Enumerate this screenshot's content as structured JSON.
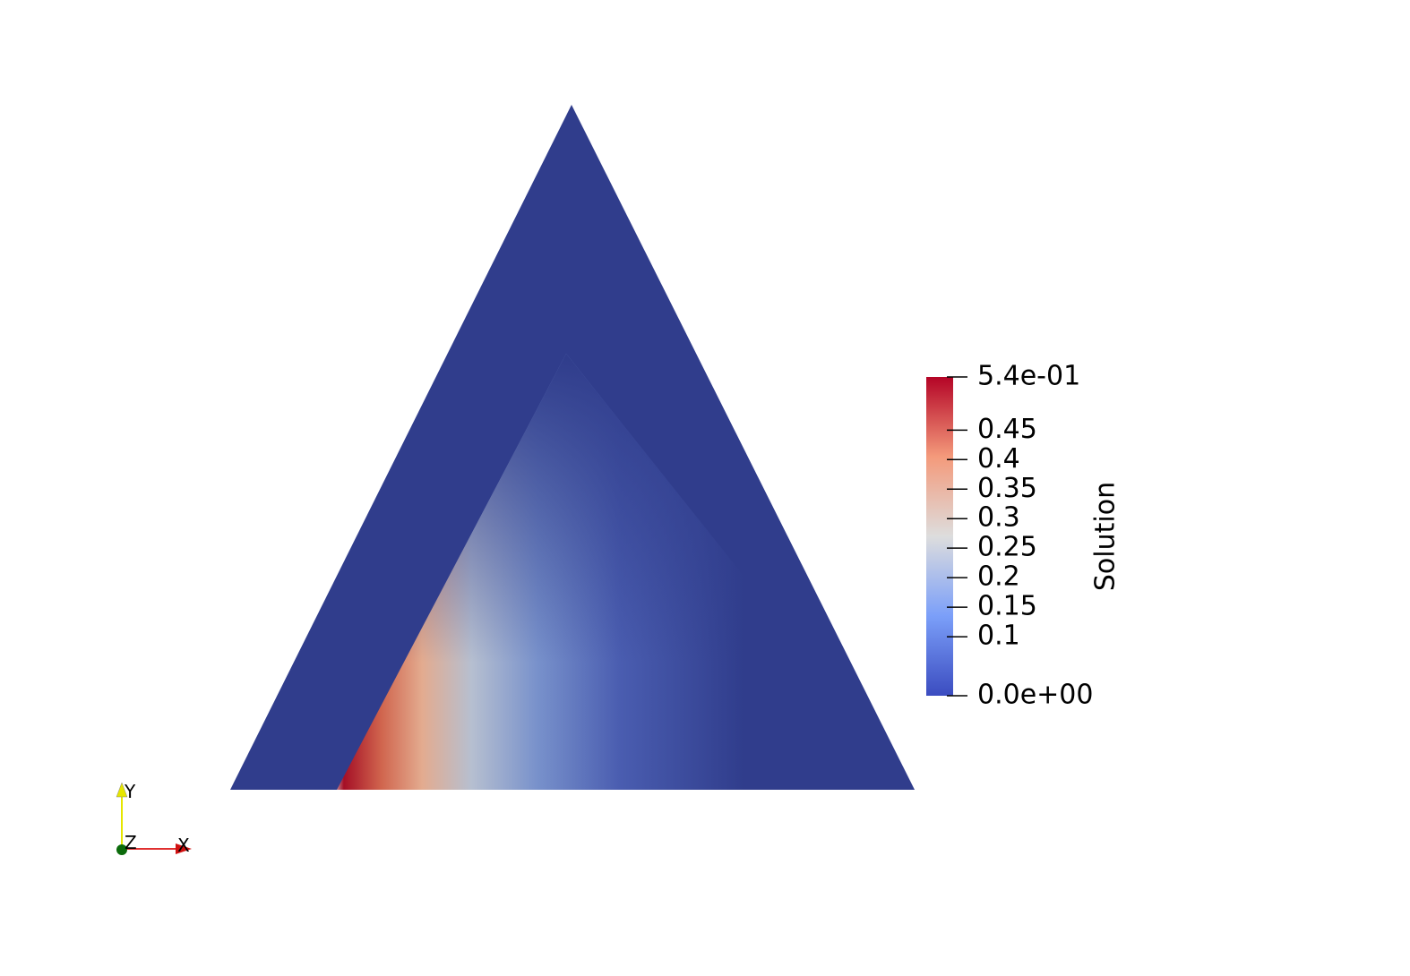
{
  "colorbar": {
    "title": "Solution",
    "range": [
      0,
      0.54
    ],
    "ticks": [
      {
        "value": 0.54,
        "label": "5.4e-01"
      },
      0.45,
      0.4,
      0.35,
      0.3,
      0.25,
      0.2,
      0.15,
      0.1,
      {
        "value": 0,
        "label": "0.0e+00"
      }
    ]
  },
  "axes": {
    "x": "X",
    "y": "Y",
    "z": "Z"
  }
}
